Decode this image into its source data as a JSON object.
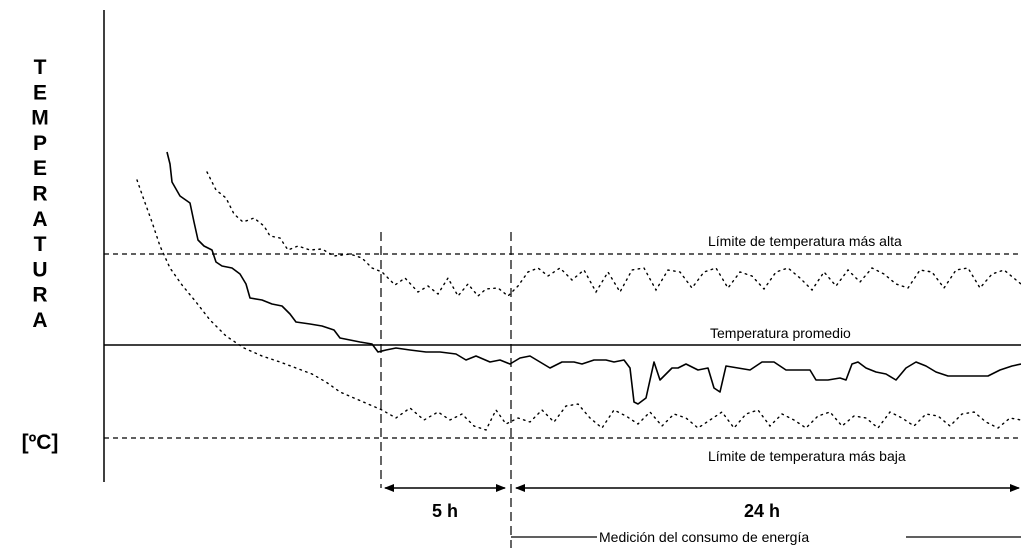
{
  "y_axis": {
    "label": "TEMPERATURA",
    "unit": "[ºC]"
  },
  "reference_lines": {
    "upper_limit": "Límite de temperatura más alta",
    "average": "Temperatura promedio",
    "lower_limit": "Límite de temperatura más baja"
  },
  "durations": {
    "stabilization": "5 h",
    "measurement": "24 h"
  },
  "measurement_note": "Medición del consumo de energía"
}
